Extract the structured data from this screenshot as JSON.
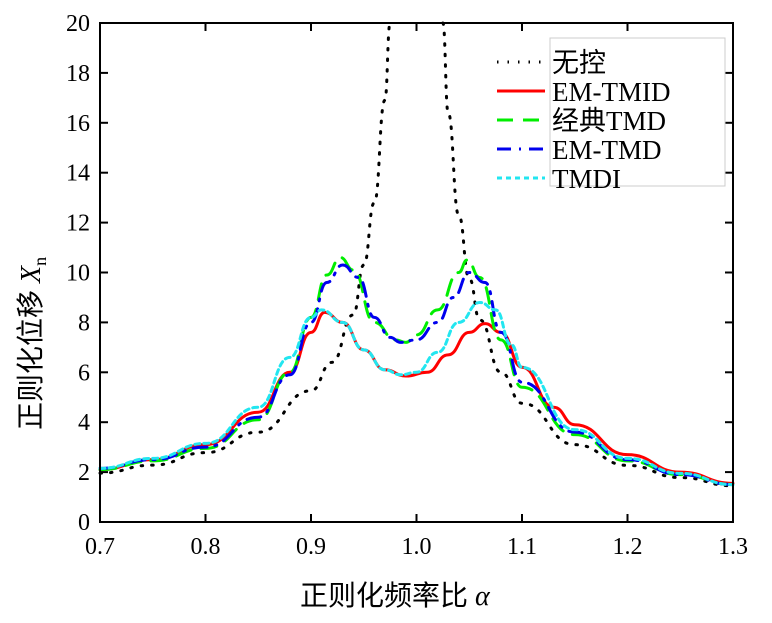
{
  "chart_data": {
    "type": "line",
    "xlabel": "正则化频率比",
    "xlabel_symbol": "α",
    "ylabel": "正则化位移",
    "ylabel_symbol": "X",
    "ylabel_subscript": "n",
    "xlim": [
      0.7,
      1.3
    ],
    "ylim": [
      0,
      20
    ],
    "xticks": [
      "0.7",
      "0.8",
      "0.9",
      "1.0",
      "1.1",
      "1.2",
      "1.3"
    ],
    "yticks": [
      "0",
      "2",
      "4",
      "6",
      "8",
      "10",
      "12",
      "14",
      "16",
      "18",
      "20"
    ],
    "grid": false,
    "legend_position": "top-right",
    "series": [
      {
        "name": "无控",
        "color": "#000000",
        "style": "dotted",
        "segments": [
          {
            "x": [
              0.7,
              0.75,
              0.8,
              0.85,
              0.9,
              0.92,
              0.94,
              0.95,
              0.96,
              0.97,
              0.975
            ],
            "y": [
              1.96,
              2.28,
              2.78,
              3.6,
              5.26,
              6.4,
              8.3,
              10.3,
              12.8,
              16.9,
              20
            ]
          },
          {
            "x": [
              1.025,
              1.03,
              1.04,
              1.05,
              1.06,
              1.08,
              1.1,
              1.15,
              1.2,
              1.25,
              1.3
            ],
            "y": [
              20,
              16.4,
              12.3,
              9.76,
              8.1,
              6.0,
              4.76,
              3.1,
              2.27,
              1.78,
              1.45
            ]
          }
        ]
      },
      {
        "name": "EM-TMID",
        "color": "#ff0000",
        "style": "solid",
        "segments": [
          {
            "x": [
              0.7,
              0.75,
              0.8,
              0.85,
              0.88,
              0.9,
              0.913,
              0.93,
              0.95,
              0.97,
              0.99,
              1.01,
              1.03,
              1.05,
              1.065,
              1.08,
              1.1,
              1.13,
              1.15,
              1.2,
              1.25,
              1.3
            ],
            "y": [
              2.1,
              2.5,
              3.1,
              4.4,
              6.0,
              7.6,
              8.4,
              8.0,
              6.9,
              6.1,
              5.85,
              6.0,
              6.7,
              7.6,
              7.95,
              7.6,
              6.2,
              4.6,
              3.9,
              2.7,
              2.0,
              1.55
            ]
          }
        ]
      },
      {
        "name": "经典TMD",
        "color": "#00ee00",
        "style": "dashed",
        "segments": [
          {
            "x": [
              0.7,
              0.75,
              0.8,
              0.85,
              0.88,
              0.9,
              0.915,
              0.928,
              0.94,
              0.96,
              0.98,
              0.99,
              1.0,
              1.02,
              1.04,
              1.048,
              1.06,
              1.08,
              1.1,
              1.15,
              1.2,
              1.25,
              1.3
            ],
            "y": [
              2.1,
              2.45,
              2.95,
              4.1,
              6.0,
              8.2,
              9.9,
              10.6,
              10.1,
              8.0,
              7.3,
              7.2,
              7.5,
              8.5,
              10.0,
              10.5,
              9.8,
              7.3,
              5.4,
              3.5,
              2.45,
              1.9,
              1.5
            ]
          }
        ]
      },
      {
        "name": "EM-TMD",
        "color": "#0000ee",
        "style": "dashdot",
        "segments": [
          {
            "x": [
              0.7,
              0.75,
              0.8,
              0.85,
              0.88,
              0.9,
              0.915,
              0.93,
              0.945,
              0.96,
              0.975,
              0.985,
              1.0,
              1.02,
              1.035,
              1.05,
              1.065,
              1.08,
              1.1,
              1.15,
              1.2,
              1.25,
              1.3
            ],
            "y": [
              2.15,
              2.5,
              3.0,
              4.2,
              5.9,
              8.0,
              9.6,
              10.3,
              9.8,
              8.2,
              7.4,
              7.2,
              7.3,
              8.0,
              9.0,
              10.0,
              9.6,
              7.6,
              5.6,
              3.6,
              2.5,
              1.9,
              1.5
            ]
          }
        ]
      },
      {
        "name": "TMDI",
        "color": "#22e6f0",
        "style": "dotted-dense",
        "segments": [
          {
            "x": [
              0.7,
              0.75,
              0.8,
              0.85,
              0.88,
              0.9,
              0.91,
              0.93,
              0.95,
              0.97,
              0.985,
              1.0,
              1.02,
              1.04,
              1.06,
              1.075,
              1.09,
              1.1,
              1.15,
              1.2,
              1.25,
              1.3
            ],
            "y": [
              2.15,
              2.55,
              3.15,
              4.6,
              6.6,
              8.2,
              8.5,
              8.0,
              6.9,
              6.1,
              5.9,
              6.0,
              6.8,
              8.0,
              8.8,
              8.5,
              7.1,
              6.2,
              3.7,
              2.55,
              1.95,
              1.5
            ]
          }
        ]
      }
    ]
  }
}
